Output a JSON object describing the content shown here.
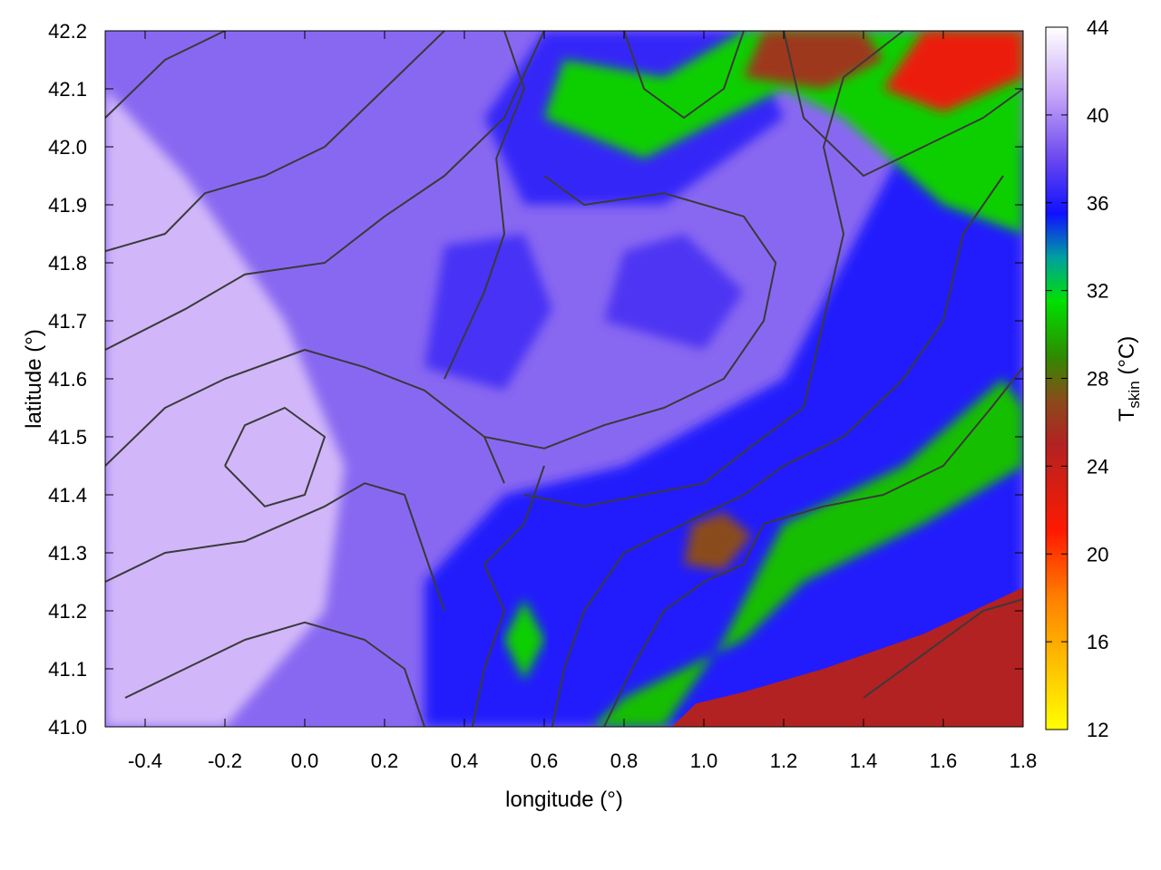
{
  "chart_data": {
    "type": "heatmap",
    "title": "",
    "xlabel": "longitude (°)",
    "ylabel": "latitude (°)",
    "xlim": [
      -0.5,
      1.8
    ],
    "ylim": [
      41.0,
      42.2
    ],
    "x_ticks": [
      -0.4,
      -0.2,
      0.0,
      0.2,
      0.4,
      0.6,
      0.8,
      1.0,
      1.2,
      1.4,
      1.6,
      1.8
    ],
    "x_tick_labels": [
      "-0.4",
      "-0.2",
      "0.0",
      "0.2",
      "0.4",
      "0.6",
      "0.8",
      "1.0",
      "1.2",
      "1.4",
      "1.6",
      "1.8"
    ],
    "y_ticks": [
      41.0,
      41.1,
      41.2,
      41.3,
      41.4,
      41.5,
      41.6,
      41.7,
      41.8,
      41.9,
      42.0,
      42.1,
      42.2
    ],
    "y_tick_labels": [
      "41.0",
      "41.1",
      "41.2",
      "41.3",
      "41.4",
      "41.5",
      "41.6",
      "41.7",
      "41.8",
      "41.9",
      "42.0",
      "42.1",
      "42.2"
    ],
    "colorbar": {
      "label_main": "T",
      "label_sub": "skin",
      "label_unit": " (°C)",
      "range": [
        12,
        44
      ],
      "ticks": [
        12,
        16,
        20,
        24,
        28,
        32,
        36,
        40,
        44
      ],
      "tick_labels": [
        "12",
        "16",
        "20",
        "24",
        "28",
        "32",
        "36",
        "40",
        "44"
      ],
      "stops": [
        {
          "value": 12,
          "color": "#ffff00"
        },
        {
          "value": 18,
          "color": "#ff8000"
        },
        {
          "value": 21,
          "color": "#ff1a00"
        },
        {
          "value": 25,
          "color": "#b22222"
        },
        {
          "value": 27,
          "color": "#8a4b1a"
        },
        {
          "value": 29,
          "color": "#2e8b00"
        },
        {
          "value": 31.5,
          "color": "#00e000"
        },
        {
          "value": 33.5,
          "color": "#00a0a0"
        },
        {
          "value": 35.5,
          "color": "#1010ff"
        },
        {
          "value": 38,
          "color": "#6a48ee"
        },
        {
          "value": 41,
          "color": "#c8a8f8"
        },
        {
          "value": 44,
          "color": "#ffffff"
        }
      ]
    },
    "field_regions": [
      {
        "name": "background",
        "value": 39,
        "points": [
          [
            -0.5,
            41.0
          ],
          [
            1.8,
            41.0
          ],
          [
            1.8,
            42.2
          ],
          [
            -0.5,
            42.2
          ]
        ]
      },
      {
        "name": "warm-west",
        "value": 41.5,
        "points": [
          [
            -0.5,
            41.0
          ],
          [
            -0.2,
            41.0
          ],
          [
            0.05,
            41.2
          ],
          [
            0.1,
            41.45
          ],
          [
            -0.05,
            41.7
          ],
          [
            -0.3,
            41.95
          ],
          [
            -0.5,
            42.1
          ]
        ]
      },
      {
        "name": "east-blue",
        "value": 36,
        "points": [
          [
            0.3,
            41.0
          ],
          [
            1.8,
            41.0
          ],
          [
            1.8,
            42.0
          ],
          [
            1.5,
            42.0
          ],
          [
            1.2,
            41.6
          ],
          [
            0.8,
            41.45
          ],
          [
            0.5,
            41.4
          ],
          [
            0.3,
            41.25
          ]
        ]
      },
      {
        "name": "central-blue-1",
        "value": 37,
        "points": [
          [
            0.3,
            41.62
          ],
          [
            0.5,
            41.58
          ],
          [
            0.62,
            41.72
          ],
          [
            0.55,
            41.85
          ],
          [
            0.35,
            41.83
          ]
        ]
      },
      {
        "name": "central-blue-2",
        "value": 37.2,
        "points": [
          [
            0.75,
            41.7
          ],
          [
            1.0,
            41.65
          ],
          [
            1.1,
            41.75
          ],
          [
            0.95,
            41.85
          ],
          [
            0.8,
            41.82
          ]
        ]
      },
      {
        "name": "north-blue",
        "value": 36.5,
        "points": [
          [
            0.55,
            41.9
          ],
          [
            0.9,
            41.9
          ],
          [
            1.2,
            42.05
          ],
          [
            1.1,
            42.2
          ],
          [
            0.6,
            42.2
          ],
          [
            0.45,
            42.05
          ]
        ]
      },
      {
        "name": "green-north",
        "value": 31,
        "points": [
          [
            0.6,
            42.05
          ],
          [
            0.85,
            41.98
          ],
          [
            1.05,
            42.05
          ],
          [
            1.2,
            42.1
          ],
          [
            1.35,
            42.05
          ],
          [
            1.6,
            41.9
          ],
          [
            1.8,
            41.85
          ],
          [
            1.8,
            42.2
          ],
          [
            1.1,
            42.2
          ],
          [
            0.9,
            42.12
          ],
          [
            0.65,
            42.15
          ]
        ]
      },
      {
        "name": "red-northeast",
        "value": 22,
        "points": [
          [
            1.45,
            42.1
          ],
          [
            1.6,
            42.06
          ],
          [
            1.8,
            42.12
          ],
          [
            1.8,
            42.2
          ],
          [
            1.55,
            42.2
          ]
        ]
      },
      {
        "name": "brown-north",
        "value": 26,
        "points": [
          [
            1.1,
            42.12
          ],
          [
            1.3,
            42.1
          ],
          [
            1.45,
            42.15
          ],
          [
            1.4,
            42.2
          ],
          [
            1.15,
            42.2
          ]
        ]
      },
      {
        "name": "green-southeast",
        "value": 30.5,
        "points": [
          [
            0.72,
            41.0
          ],
          [
            0.9,
            41.0
          ],
          [
            1.05,
            41.15
          ],
          [
            1.2,
            41.35
          ],
          [
            1.5,
            41.45
          ],
          [
            1.75,
            41.6
          ],
          [
            1.8,
            41.55
          ],
          [
            1.8,
            41.45
          ],
          [
            1.55,
            41.35
          ],
          [
            1.25,
            41.25
          ],
          [
            1.1,
            41.15
          ],
          [
            0.95,
            41.1
          ],
          [
            0.8,
            41.05
          ]
        ]
      },
      {
        "name": "brown-southeast-patch",
        "value": 27,
        "points": [
          [
            0.95,
            41.28
          ],
          [
            1.05,
            41.27
          ],
          [
            1.12,
            41.33
          ],
          [
            1.05,
            41.37
          ],
          [
            0.97,
            41.35
          ]
        ]
      },
      {
        "name": "green-mid",
        "value": 31,
        "points": [
          [
            0.5,
            41.15
          ],
          [
            0.55,
            41.08
          ],
          [
            0.6,
            41.15
          ],
          [
            0.55,
            41.22
          ]
        ]
      },
      {
        "name": "sea",
        "value": 25,
        "points": [
          [
            0.92,
            41.0
          ],
          [
            1.8,
            41.0
          ],
          [
            1.8,
            41.24
          ],
          [
            1.55,
            41.16
          ],
          [
            1.3,
            41.1
          ],
          [
            1.1,
            41.06
          ],
          [
            0.98,
            41.04
          ]
        ]
      }
    ],
    "contours": [
      [
        [
          -0.5,
          42.05
        ],
        [
          -0.35,
          42.15
        ],
        [
          -0.2,
          42.2
        ]
      ],
      [
        [
          -0.5,
          41.82
        ],
        [
          -0.35,
          41.85
        ],
        [
          -0.25,
          41.92
        ],
        [
          -0.1,
          41.95
        ],
        [
          0.05,
          42.0
        ],
        [
          0.2,
          42.1
        ],
        [
          0.35,
          42.2
        ]
      ],
      [
        [
          -0.5,
          41.65
        ],
        [
          -0.3,
          41.72
        ],
        [
          -0.15,
          41.78
        ],
        [
          0.05,
          41.8
        ],
        [
          0.2,
          41.88
        ],
        [
          0.35,
          41.95
        ],
        [
          0.5,
          42.05
        ],
        [
          0.6,
          42.2
        ]
      ],
      [
        [
          -0.5,
          41.45
        ],
        [
          -0.35,
          41.55
        ],
        [
          -0.2,
          41.6
        ],
        [
          0.0,
          41.65
        ],
        [
          0.15,
          41.62
        ],
        [
          0.3,
          41.58
        ],
        [
          0.45,
          41.5
        ],
        [
          0.5,
          41.42
        ]
      ],
      [
        [
          -0.5,
          41.25
        ],
        [
          -0.35,
          41.3
        ],
        [
          -0.15,
          41.32
        ],
        [
          0.05,
          41.38
        ],
        [
          0.15,
          41.42
        ],
        [
          0.25,
          41.4
        ],
        [
          0.3,
          41.3
        ],
        [
          0.35,
          41.2
        ]
      ],
      [
        [
          -0.45,
          41.05
        ],
        [
          -0.3,
          41.1
        ],
        [
          -0.15,
          41.15
        ],
        [
          0.0,
          41.18
        ],
        [
          0.15,
          41.15
        ],
        [
          0.25,
          41.1
        ],
        [
          0.3,
          41.0
        ]
      ],
      [
        [
          0.45,
          41.5
        ],
        [
          0.6,
          41.48
        ],
        [
          0.75,
          41.52
        ],
        [
          0.9,
          41.55
        ],
        [
          1.05,
          41.6
        ],
        [
          1.15,
          41.7
        ],
        [
          1.18,
          41.8
        ],
        [
          1.1,
          41.88
        ],
        [
          0.9,
          41.92
        ],
        [
          0.7,
          41.9
        ],
        [
          0.6,
          41.95
        ]
      ],
      [
        [
          0.35,
          41.6
        ],
        [
          0.45,
          41.75
        ],
        [
          0.5,
          41.85
        ],
        [
          0.48,
          41.98
        ],
        [
          0.55,
          42.1
        ],
        [
          0.5,
          42.2
        ]
      ],
      [
        [
          0.55,
          41.4
        ],
        [
          0.7,
          41.38
        ],
        [
          0.85,
          41.4
        ],
        [
          1.0,
          41.42
        ],
        [
          1.15,
          41.5
        ],
        [
          1.25,
          41.55
        ],
        [
          1.3,
          41.7
        ],
        [
          1.35,
          41.85
        ],
        [
          1.3,
          42.0
        ],
        [
          1.35,
          42.12
        ],
        [
          1.5,
          42.2
        ]
      ],
      [
        [
          0.62,
          41.0
        ],
        [
          0.65,
          41.1
        ],
        [
          0.7,
          41.2
        ],
        [
          0.8,
          41.3
        ],
        [
          0.95,
          41.35
        ],
        [
          1.1,
          41.4
        ],
        [
          1.2,
          41.45
        ],
        [
          1.35,
          41.5
        ],
        [
          1.5,
          41.6
        ],
        [
          1.6,
          41.7
        ],
        [
          1.65,
          41.85
        ],
        [
          1.75,
          41.95
        ]
      ],
      [
        [
          0.75,
          41.0
        ],
        [
          0.82,
          41.1
        ],
        [
          0.9,
          41.2
        ],
        [
          1.0,
          41.25
        ],
        [
          1.1,
          41.28
        ],
        [
          1.15,
          41.35
        ],
        [
          1.3,
          41.38
        ],
        [
          1.45,
          41.4
        ],
        [
          1.6,
          41.45
        ],
        [
          1.72,
          41.55
        ],
        [
          1.8,
          41.62
        ]
      ],
      [
        [
          0.42,
          41.0
        ],
        [
          0.45,
          41.1
        ],
        [
          0.5,
          41.2
        ],
        [
          0.45,
          41.28
        ],
        [
          0.55,
          41.35
        ],
        [
          0.6,
          41.45
        ]
      ],
      [
        [
          0.8,
          42.2
        ],
        [
          0.85,
          42.1
        ],
        [
          0.95,
          42.05
        ],
        [
          1.05,
          42.1
        ],
        [
          1.1,
          42.2
        ]
      ],
      [
        [
          1.2,
          42.2
        ],
        [
          1.25,
          42.05
        ],
        [
          1.4,
          41.95
        ],
        [
          1.55,
          42.0
        ],
        [
          1.7,
          42.05
        ],
        [
          1.8,
          42.1
        ]
      ],
      [
        [
          -0.2,
          41.45
        ],
        [
          -0.1,
          41.38
        ],
        [
          0.0,
          41.4
        ],
        [
          0.05,
          41.5
        ],
        [
          -0.05,
          41.55
        ],
        [
          -0.15,
          41.52
        ],
        [
          -0.2,
          41.45
        ]
      ],
      [
        [
          1.4,
          41.05
        ],
        [
          1.5,
          41.1
        ],
        [
          1.6,
          41.15
        ],
        [
          1.7,
          41.2
        ],
        [
          1.8,
          41.22
        ]
      ]
    ]
  }
}
